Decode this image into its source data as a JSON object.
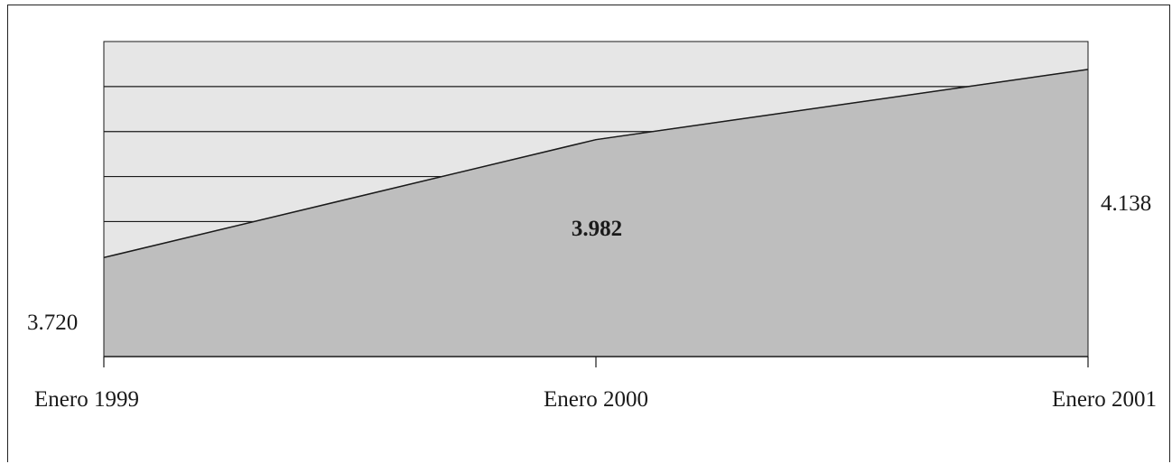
{
  "chart_data": {
    "type": "area",
    "categories": [
      "Enero 1999",
      "Enero 2000",
      "Enero 2001"
    ],
    "values": [
      3720,
      3982,
      4138
    ],
    "point_labels": [
      "3.720",
      "3.982",
      "4.138"
    ],
    "ylim": [
      3500,
      4200
    ],
    "grid": true,
    "colors": {
      "area_fill": "#bebebe",
      "plot_background": "#e6e6e6",
      "gridline": "#1a1a1a",
      "line": "#1a1a1a"
    }
  }
}
